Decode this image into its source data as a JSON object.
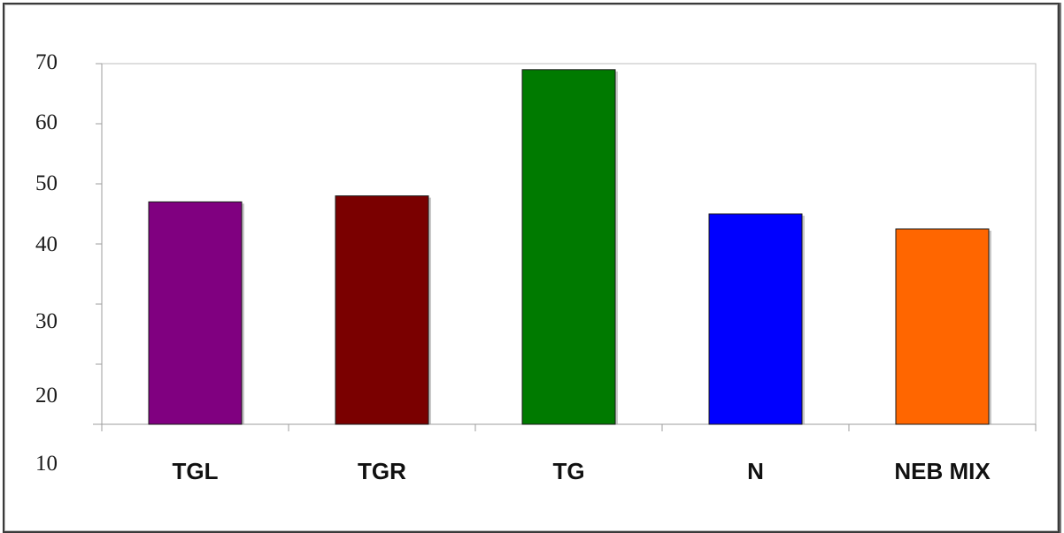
{
  "chart_data": {
    "type": "bar",
    "title": "",
    "xlabel": "",
    "ylabel": "",
    "categories": [
      "TGL",
      "TGR",
      "TG",
      "N",
      "NEB MIX"
    ],
    "values": [
      47,
      48,
      69,
      45,
      42.5
    ],
    "colors": [
      "#800080",
      "#7a0000",
      "#007a00",
      "#0000ff",
      "#ff6600"
    ],
    "ylim": [
      10,
      70
    ],
    "yticks": [
      "10",
      "20",
      "30",
      "40",
      "50",
      "60",
      "70"
    ],
    "grid": false,
    "legend": "none"
  }
}
